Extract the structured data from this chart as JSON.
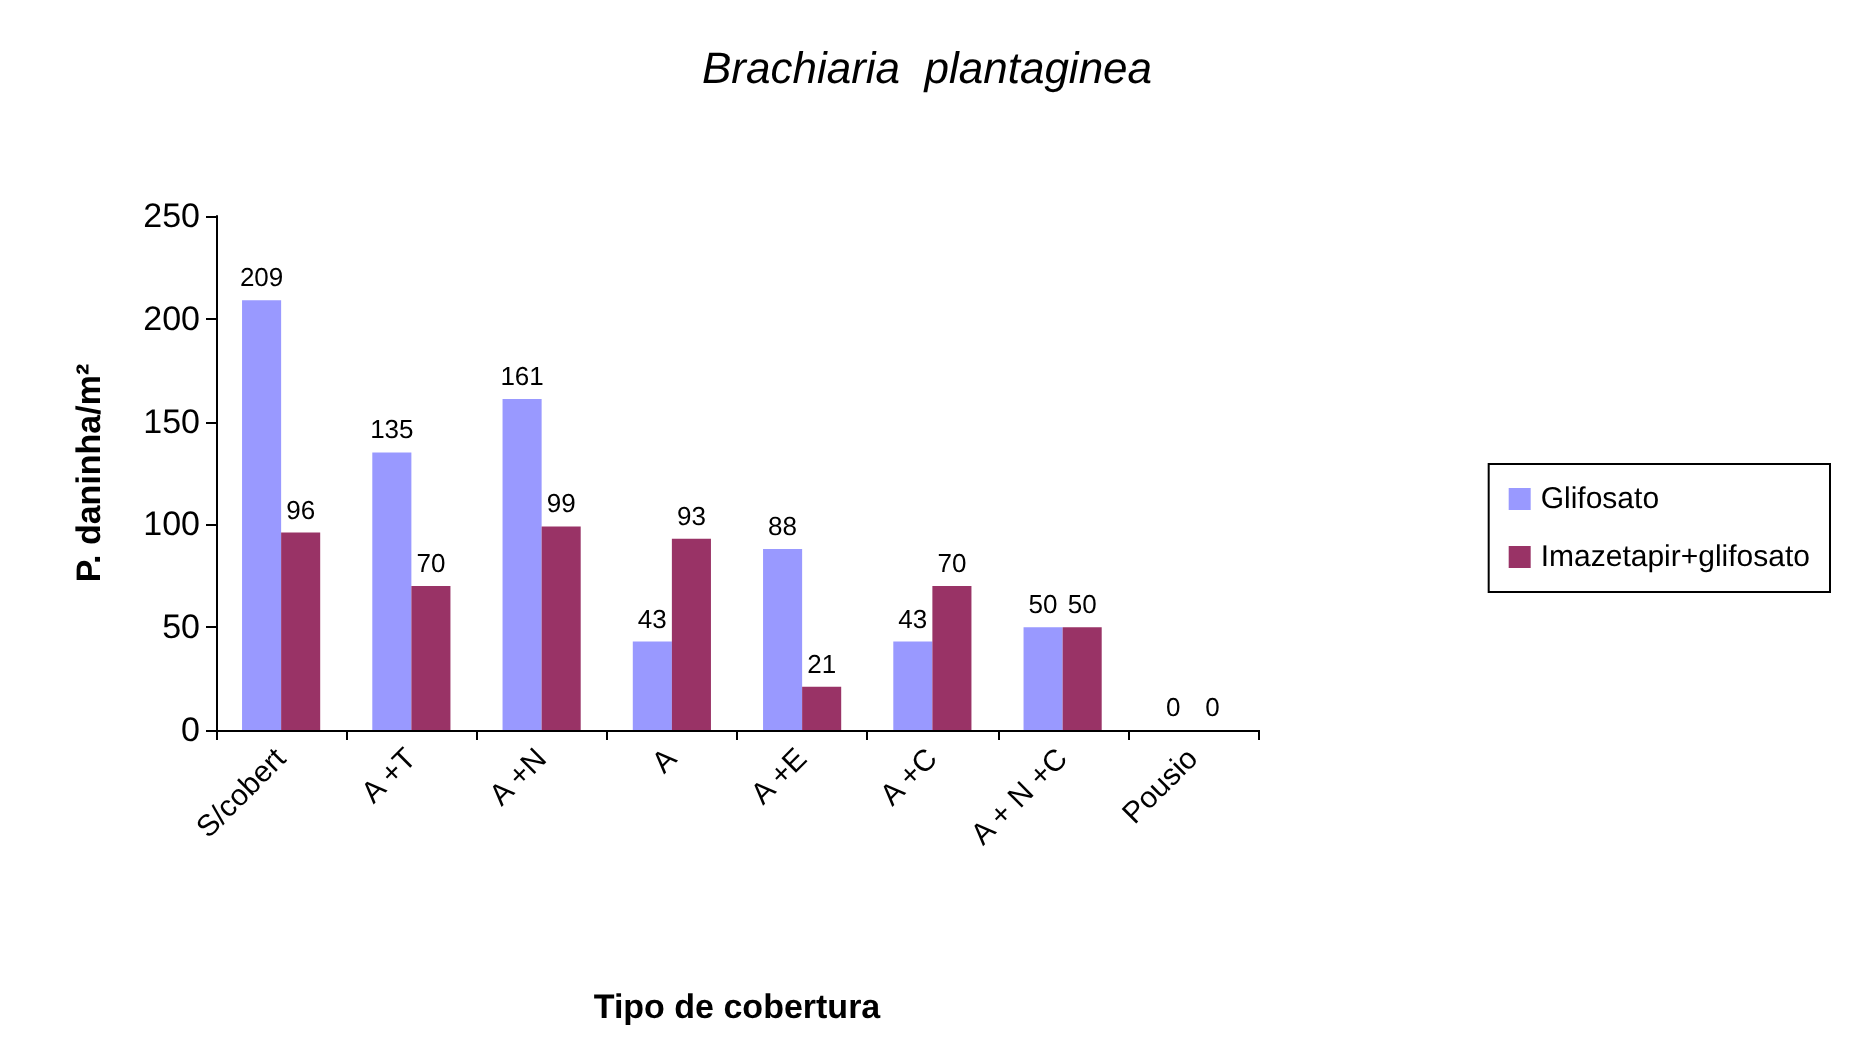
{
  "chart_data": {
    "type": "bar",
    "title": "Brachiaria  plantaginea",
    "xlabel": "Tipo de cobertura",
    "ylabel": "P. daninha/m²",
    "categories": [
      "S/cobert",
      "A +T",
      "A +N",
      "A",
      "A +E",
      "A +C",
      "A + N +C",
      "Pousio"
    ],
    "series": [
      {
        "name": "Glifosato",
        "color": "#9999ff",
        "values": [
          209,
          135,
          161,
          43,
          88,
          43,
          50,
          0
        ]
      },
      {
        "name": "Imazetapir+glifosato",
        "color": "#993366",
        "values": [
          96,
          70,
          99,
          93,
          21,
          70,
          50,
          0
        ]
      }
    ],
    "ylim": [
      0,
      250
    ],
    "yticks": [
      0,
      50,
      100,
      150,
      200,
      250
    ],
    "grid": false,
    "legend": "right",
    "data_labels": true
  }
}
